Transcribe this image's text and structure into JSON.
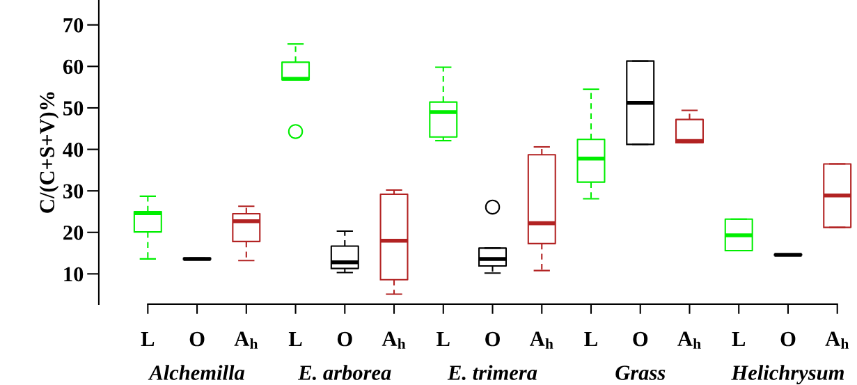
{
  "chart_data": {
    "type": "box",
    "ylabel": "C/(C+S+V)%",
    "categories": [
      "L",
      "O",
      "A$_{h}$",
      "L",
      "O",
      "A$_{h}$",
      "L",
      "O",
      "A$_{h}$",
      "L",
      "O",
      "A$_{h}$",
      "L",
      "O",
      "A$_{h}$"
    ],
    "annotations": [
      "Alchemilla",
      "E. arborea",
      "E. trimera",
      "Grass",
      "Helichrysum"
    ],
    "ylim": [
      2.7,
      76
    ],
    "yticks": [
      10,
      20,
      30,
      40,
      50,
      60,
      70
    ],
    "grid": false,
    "colors": [
      "#00ee00",
      "#000000",
      "#b22222",
      "#00ee00",
      "#000000",
      "#b22222",
      "#00ee00",
      "#000000",
      "#b22222",
      "#00ee00",
      "#000000",
      "#b22222",
      "#00ee00",
      "#000000",
      "#b22222"
    ],
    "boxes": [
      {
        "low": 13.6,
        "q1": 20.1,
        "median": 24.6,
        "q3": 25.0,
        "high": 28.7
      },
      {
        "low": 13.6,
        "q1": 13.5,
        "median": 13.6,
        "q3": 13.8,
        "high": 13.8
      },
      {
        "low": 13.2,
        "q1": 17.8,
        "median": 22.7,
        "q3": 24.5,
        "high": 26.3
      },
      {
        "low": 56.8,
        "q1": 56.8,
        "median": 57.0,
        "q3": 61.0,
        "high": 65.4,
        "outliers": [
          44.3
        ]
      },
      {
        "low": 10.3,
        "q1": 11.3,
        "median": 12.8,
        "q3": 16.7,
        "high": 20.3
      },
      {
        "low": 5.1,
        "q1": 8.6,
        "median": 18.0,
        "q3": 29.2,
        "high": 30.2
      },
      {
        "low": 42.1,
        "q1": 43.0,
        "median": 49.0,
        "q3": 51.4,
        "high": 59.8
      },
      {
        "low": 10.2,
        "q1": 11.9,
        "median": 13.6,
        "q3": 16.2,
        "high": 16.2,
        "outliers": [
          26.1
        ]
      },
      {
        "low": 10.8,
        "q1": 17.3,
        "median": 22.2,
        "q3": 38.7,
        "high": 40.6
      },
      {
        "low": 28.1,
        "q1": 32.1,
        "median": 37.8,
        "q3": 42.4,
        "high": 54.5
      },
      {
        "low": 41.2,
        "q1": 41.2,
        "median": 51.2,
        "q3": 61.3,
        "high": 61.3
      },
      {
        "low": 41.6,
        "q1": 41.6,
        "median": 42.0,
        "q3": 47.2,
        "high": 49.4
      },
      {
        "low": 15.6,
        "q1": 15.6,
        "median": 19.3,
        "q3": 23.2,
        "high": 23.2
      },
      {
        "low": 14.6,
        "q1": 14.5,
        "median": 14.6,
        "q3": 14.7,
        "high": 14.7
      },
      {
        "low": 21.2,
        "q1": 21.2,
        "median": 28.9,
        "q3": 36.5,
        "high": 36.5
      }
    ]
  }
}
